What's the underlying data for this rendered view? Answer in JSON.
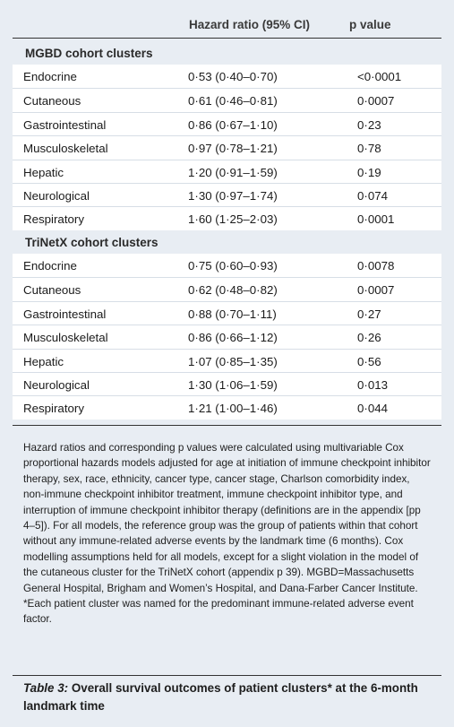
{
  "header": {
    "col_hr": "Hazard ratio (95% CI)",
    "col_p": "p value"
  },
  "groups": [
    {
      "title": "MGBD cohort clusters",
      "rows": [
        {
          "name": "Endocrine",
          "hr": "0·53 (0·40–0·70)",
          "p": "<0·0001"
        },
        {
          "name": "Cutaneous",
          "hr": "0·61 (0·46–0·81)",
          "p": "0·0007"
        },
        {
          "name": "Gastrointestinal",
          "hr": "0·86 (0·67–1·10)",
          "p": "0·23"
        },
        {
          "name": "Musculoskeletal",
          "hr": "0·97 (0·78–1·21)",
          "p": "0·78"
        },
        {
          "name": "Hepatic",
          "hr": "1·20 (0·91–1·59)",
          "p": "0·19"
        },
        {
          "name": "Neurological",
          "hr": "1·30 (0·97–1·74)",
          "p": "0·074"
        },
        {
          "name": "Respiratory",
          "hr": "1·60 (1·25–2·03)",
          "p": "0·0001"
        }
      ]
    },
    {
      "title": "TriNetX cohort clusters",
      "rows": [
        {
          "name": "Endocrine",
          "hr": "0·75 (0·60–0·93)",
          "p": "0·0078"
        },
        {
          "name": "Cutaneous",
          "hr": "0·62 (0·48–0·82)",
          "p": "0·0007"
        },
        {
          "name": "Gastrointestinal",
          "hr": "0·88 (0·70–1·11)",
          "p": "0·27"
        },
        {
          "name": "Musculoskeletal",
          "hr": "0·86 (0·66–1·12)",
          "p": "0·26"
        },
        {
          "name": "Hepatic",
          "hr": "1·07 (0·85–1·35)",
          "p": "0·56"
        },
        {
          "name": "Neurological",
          "hr": "1·30 (1·06–1·59)",
          "p": "0·013"
        },
        {
          "name": "Respiratory",
          "hr": "1·21 (1·00–1·46)",
          "p": "0·044"
        }
      ]
    }
  ],
  "footnote": "Hazard ratios and corresponding p values were calculated using multivariable Cox proportional hazards models adjusted for age at initiation of immune checkpoint inhibitor therapy, sex, race, ethnicity, cancer type, cancer stage, Charlson comorbidity index, non-immune checkpoint inhibitor treatment, immune checkpoint inhibitor type, and interruption of immune checkpoint inhibitor therapy (definitions are in the appendix [pp 4–5]). For all models, the reference group was the group of patients within that cohort without any immune-related adverse events by the landmark time (6 months). Cox modelling assumptions held for all models, except for a slight violation in the model of the cutaneous cluster for the TriNetX cohort (appendix p 39). MGBD=Massachusetts General Hospital, Brigham and Women’s Hospital, and Dana-Farber Cancer Institute.",
  "footnote_star": "*Each patient cluster was named for the predominant immune-related adverse event factor.",
  "caption": {
    "label": "Table 3:",
    "text": " Overall survival outcomes of patient clusters* at the 6-month landmark time"
  }
}
